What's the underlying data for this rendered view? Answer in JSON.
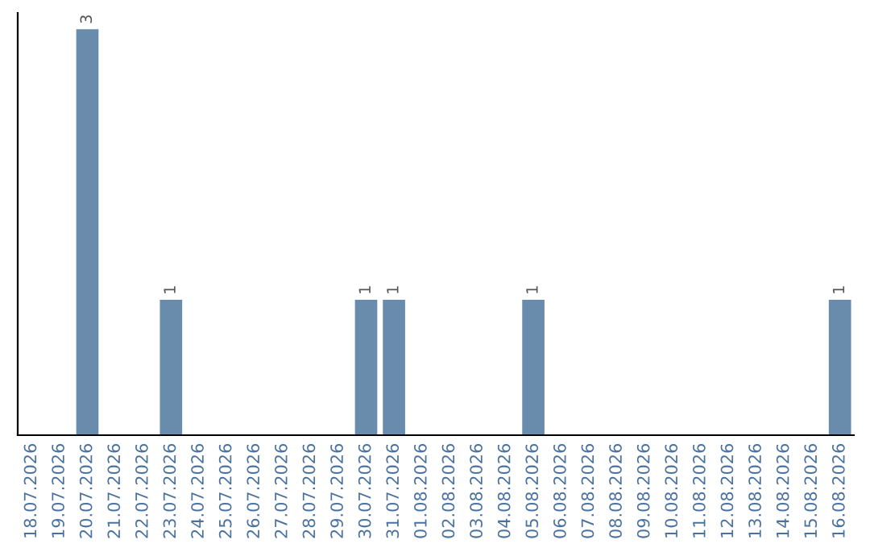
{
  "chart_data": {
    "type": "bar",
    "categories": [
      "18.07.2026",
      "19.07.2026",
      "20.07.2026",
      "21.07.2026",
      "22.07.2026",
      "23.07.2026",
      "24.07.2026",
      "25.07.2026",
      "26.07.2026",
      "27.07.2026",
      "28.07.2026",
      "29.07.2026",
      "30.07.2026",
      "31.07.2026",
      "01.08.2026",
      "02.08.2026",
      "03.08.2026",
      "04.08.2026",
      "05.08.2026",
      "06.08.2026",
      "07.08.2026",
      "08.08.2026",
      "09.08.2026",
      "10.08.2026",
      "11.08.2026",
      "12.08.2026",
      "13.08.2026",
      "14.08.2026",
      "15.08.2026",
      "16.08.2026"
    ],
    "values": [
      0,
      0,
      3,
      0,
      0,
      1,
      0,
      0,
      0,
      0,
      0,
      0,
      1,
      1,
      0,
      0,
      0,
      0,
      1,
      0,
      0,
      0,
      0,
      0,
      0,
      0,
      0,
      0,
      0,
      1
    ],
    "color": "#6a8cac",
    "value_labels": [
      null,
      null,
      "3",
      null,
      null,
      "1",
      null,
      null,
      null,
      null,
      null,
      null,
      "1",
      "1",
      null,
      null,
      null,
      null,
      "1",
      null,
      null,
      null,
      null,
      null,
      null,
      null,
      null,
      null,
      null,
      "1"
    ],
    "tick_labels": "x"
  }
}
